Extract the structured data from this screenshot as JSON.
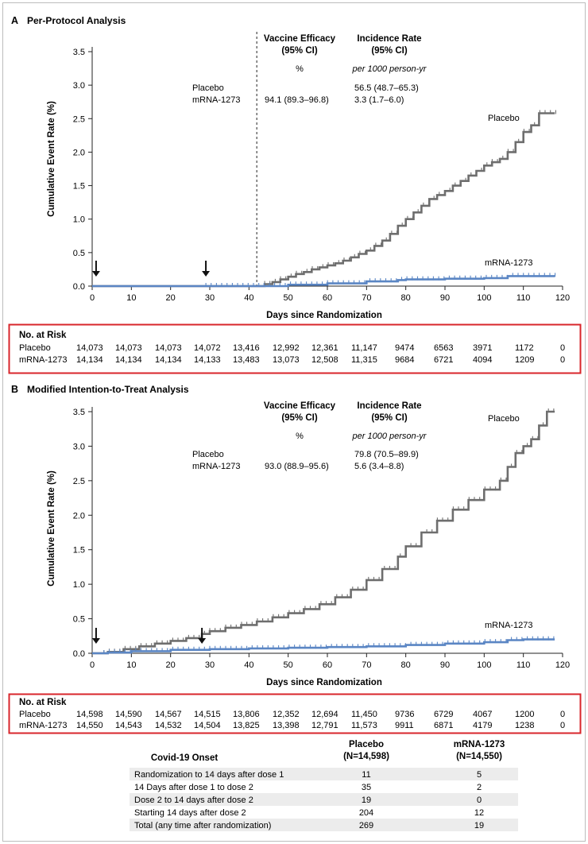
{
  "panels": [
    {
      "id": "A",
      "letter": "A",
      "title": "Per-Protocol Analysis",
      "ylabel": "Cumulative Event Rate (%)",
      "xlabel": "Days since Randomization",
      "yticks": [
        "0.0",
        "0.5",
        "1.0",
        "1.5",
        "2.0",
        "2.5",
        "3.0",
        "3.5"
      ],
      "xticks": [
        "0",
        "10",
        "20",
        "30",
        "40",
        "50",
        "60",
        "70",
        "80",
        "90",
        "100",
        "110",
        "120"
      ],
      "ve_header": [
        "Vaccine Efficacy",
        "(95% CI)"
      ],
      "ir_header": [
        "Incidence Rate",
        "(95% CI)"
      ],
      "ve_unit": "%",
      "ir_unit": "per 1000 person-yr",
      "rows": [
        {
          "label": "Placebo",
          "ve": "",
          "ir": "56.5 (48.7–65.3)"
        },
        {
          "label": "mRNA-1273",
          "ve": "94.1 (89.3–96.8)",
          "ir": "3.3 (1.7–6.0)"
        }
      ],
      "series_labels": {
        "placebo": "Placebo",
        "vaccine": "mRNA-1273"
      },
      "risk_title": "No. at Risk",
      "risk_rows": [
        {
          "label": "Placebo",
          "values": [
            "14,073",
            "14,073",
            "14,073",
            "14,072",
            "13,416",
            "12,992",
            "12,361",
            "11,147",
            "9474",
            "6563",
            "3971",
            "1172",
            "0"
          ]
        },
        {
          "label": "mRNA-1273",
          "values": [
            "14,134",
            "14,134",
            "14,134",
            "14,133",
            "13,483",
            "13,073",
            "12,508",
            "11,315",
            "9684",
            "6721",
            "4094",
            "1209",
            "0"
          ]
        }
      ]
    },
    {
      "id": "B",
      "letter": "B",
      "title": "Modified Intention-to-Treat Analysis",
      "ylabel": "Cumulative Event Rate (%)",
      "xlabel": "Days since Randomization",
      "yticks": [
        "0.0",
        "0.5",
        "1.0",
        "1.5",
        "2.0",
        "2.5",
        "3.0",
        "3.5"
      ],
      "xticks": [
        "0",
        "10",
        "20",
        "30",
        "40",
        "50",
        "60",
        "70",
        "80",
        "90",
        "100",
        "110",
        "120"
      ],
      "ve_header": [
        "Vaccine Efficacy",
        "(95% CI)"
      ],
      "ir_header": [
        "Incidence Rate",
        "(95% CI)"
      ],
      "ve_unit": "%",
      "ir_unit": "per 1000 person-yr",
      "rows": [
        {
          "label": "Placebo",
          "ve": "",
          "ir": "79.8 (70.5–89.9)"
        },
        {
          "label": "mRNA-1273",
          "ve": "93.0 (88.9–95.6)",
          "ir": "5.6 (3.4–8.8)"
        }
      ],
      "series_labels": {
        "placebo": "Placebo",
        "vaccine": "mRNA-1273"
      },
      "risk_title": "No. at Risk",
      "risk_rows": [
        {
          "label": "Placebo",
          "values": [
            "14,598",
            "14,590",
            "14,567",
            "14,515",
            "13,806",
            "12,352",
            "12,694",
            "11,450",
            "9736",
            "6729",
            "4067",
            "1200",
            "0"
          ]
        },
        {
          "label": "mRNA-1273",
          "values": [
            "14,550",
            "14,543",
            "14,532",
            "14,504",
            "13,825",
            "13,398",
            "12,791",
            "11,573",
            "9911",
            "6871",
            "4179",
            "1238",
            "0"
          ]
        }
      ]
    }
  ],
  "onset_table": {
    "header": {
      "title": "Covid-19 Onset",
      "placebo": [
        "Placebo",
        "(N=14,598)"
      ],
      "vaccine": [
        "mRNA-1273",
        "(N=14,550)"
      ]
    },
    "rows": [
      {
        "label": "Randomization to 14 days after dose 1",
        "placebo": "11",
        "vaccine": "5"
      },
      {
        "label": "14 Days after dose 1 to dose 2",
        "placebo": "35",
        "vaccine": "2"
      },
      {
        "label": "Dose 2 to 14 days after dose 2",
        "placebo": "19",
        "vaccine": "0"
      },
      {
        "label": "Starting 14 days after dose 2",
        "placebo": "204",
        "vaccine": "12"
      },
      {
        "label": "Total (any time after randomization)",
        "placebo": "269",
        "vaccine": "19"
      }
    ]
  },
  "colors": {
    "placebo": "#6e6e6e",
    "vaccine": "#5b86c4",
    "risk_border": "#d8252b",
    "dashed": "#555555",
    "row_shade": "#ececec"
  },
  "chart_data": [
    {
      "type": "line",
      "title": "Per-Protocol Analysis",
      "xlabel": "Days since Randomization",
      "ylabel": "Cumulative Event Rate (%)",
      "xlim": [
        0,
        120
      ],
      "ylim": [
        0,
        3.5
      ],
      "grid": false,
      "annotations": {
        "arrows_at_day": [
          1,
          29
        ],
        "dashed_line_at_day": 42
      },
      "series": [
        {
          "name": "Placebo",
          "x": [
            0,
            42,
            44,
            46,
            48,
            50,
            52,
            54,
            56,
            58,
            60,
            62,
            64,
            66,
            68,
            70,
            72,
            74,
            76,
            78,
            80,
            82,
            84,
            86,
            88,
            90,
            92,
            94,
            96,
            98,
            100,
            102,
            104,
            106,
            108,
            110,
            112,
            114,
            116,
            118
          ],
          "y": [
            0,
            0,
            0.03,
            0.06,
            0.1,
            0.14,
            0.18,
            0.21,
            0.25,
            0.28,
            0.31,
            0.34,
            0.38,
            0.43,
            0.48,
            0.53,
            0.6,
            0.68,
            0.78,
            0.9,
            1.0,
            1.1,
            1.2,
            1.3,
            1.36,
            1.42,
            1.5,
            1.57,
            1.65,
            1.72,
            1.8,
            1.85,
            1.9,
            2.0,
            2.15,
            2.3,
            2.4,
            2.58,
            2.58,
            2.58
          ]
        },
        {
          "name": "mRNA-1273",
          "x": [
            0,
            42,
            50,
            60,
            70,
            78,
            80,
            90,
            100,
            106,
            110,
            118
          ],
          "y": [
            0,
            0,
            0.02,
            0.04,
            0.07,
            0.09,
            0.1,
            0.11,
            0.12,
            0.15,
            0.15,
            0.15
          ]
        }
      ]
    },
    {
      "type": "line",
      "title": "Modified Intention-to-Treat Analysis",
      "xlabel": "Days since Randomization",
      "ylabel": "Cumulative Event Rate (%)",
      "xlim": [
        0,
        120
      ],
      "ylim": [
        0,
        3.5
      ],
      "grid": false,
      "annotations": {
        "arrows_at_day": [
          1,
          28
        ]
      },
      "series": [
        {
          "name": "Placebo",
          "x": [
            0,
            4,
            8,
            12,
            16,
            20,
            24,
            28,
            30,
            34,
            38,
            42,
            46,
            50,
            54,
            58,
            62,
            66,
            70,
            74,
            78,
            80,
            84,
            88,
            92,
            96,
            100,
            104,
            106,
            108,
            110,
            112,
            114,
            116,
            118
          ],
          "y": [
            0,
            0.02,
            0.06,
            0.1,
            0.14,
            0.18,
            0.22,
            0.28,
            0.32,
            0.37,
            0.41,
            0.46,
            0.52,
            0.58,
            0.64,
            0.71,
            0.81,
            0.92,
            1.06,
            1.22,
            1.4,
            1.55,
            1.75,
            1.92,
            2.08,
            2.22,
            2.37,
            2.5,
            2.7,
            2.9,
            3.0,
            3.1,
            3.3,
            3.5,
            3.5
          ]
        },
        {
          "name": "mRNA-1273",
          "x": [
            0,
            4,
            10,
            20,
            30,
            40,
            50,
            60,
            70,
            80,
            90,
            100,
            106,
            110,
            118
          ],
          "y": [
            0,
            0.01,
            0.03,
            0.05,
            0.06,
            0.07,
            0.08,
            0.09,
            0.1,
            0.12,
            0.14,
            0.16,
            0.19,
            0.2,
            0.2
          ]
        }
      ]
    }
  ]
}
